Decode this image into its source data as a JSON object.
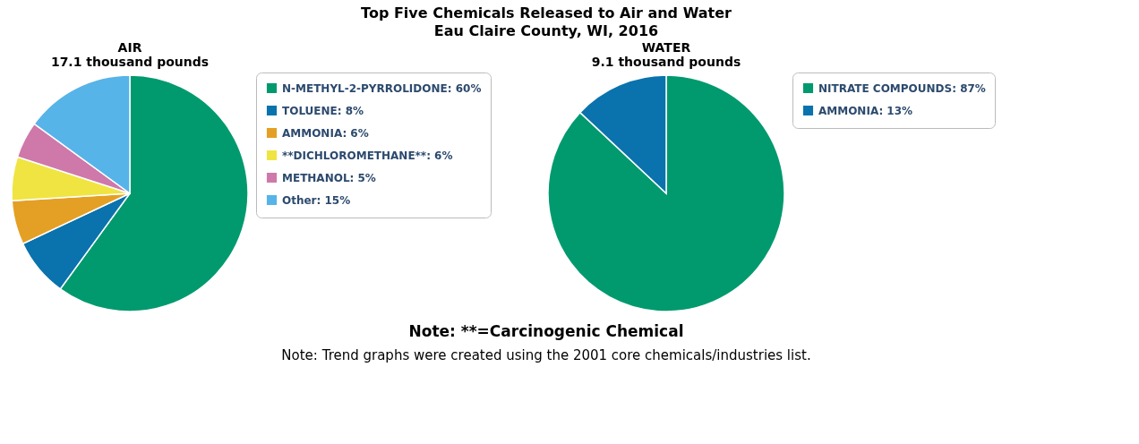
{
  "chart_data": [
    {
      "type": "other",
      "title": "Top Five Chemicals Released to Air and Water",
      "subtitle": "Eau Claire County, WI, 2016",
      "annotations": [
        "Note: **=Carcinogenic Chemical",
        "Note: Trend graphs were created using the 2001 core chemicals/industries list."
      ]
    },
    {
      "type": "pie",
      "title": "AIR",
      "subtitle": "17.1 thousand pounds",
      "legend": "right",
      "categories": [
        "N-METHYL-2-PYRROLIDONE",
        "TOLUENE",
        "AMMONIA",
        "**DICHLOROMETHANE**",
        "METHANOL",
        "Other"
      ],
      "values": [
        60,
        8,
        6,
        6,
        5,
        15
      ],
      "value_labels": [
        "60%",
        "8%",
        "6%",
        "6%",
        "5%",
        "15%"
      ],
      "colors": [
        "#009a6e",
        "#0a72ad",
        "#e4a024",
        "#f0e442",
        "#cf78aa",
        "#56b4e8"
      ]
    },
    {
      "type": "pie",
      "title": "WATER",
      "subtitle": "9.1 thousand pounds",
      "legend": "right",
      "categories": [
        "NITRATE COMPOUNDS",
        "AMMONIA"
      ],
      "values": [
        87,
        13
      ],
      "value_labels": [
        "87%",
        "13%"
      ],
      "colors": [
        "#009a6e",
        "#0a72ad"
      ]
    }
  ]
}
